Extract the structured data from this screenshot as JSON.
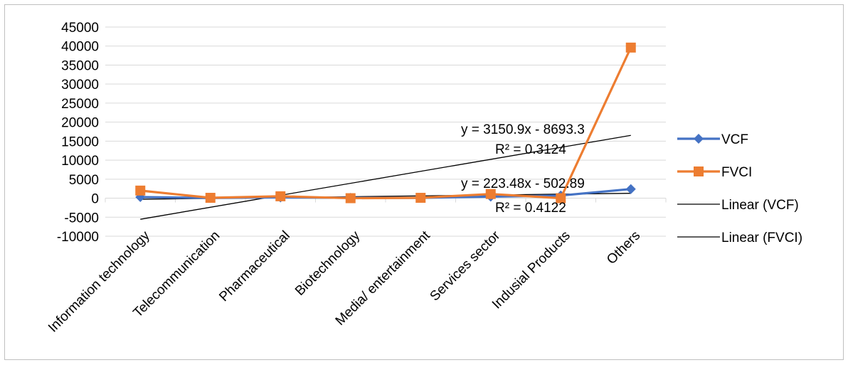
{
  "chart_data": {
    "type": "line",
    "title": "",
    "xlabel": "",
    "ylabel": "",
    "categories": [
      "Information technology",
      "Telecommunication",
      "Pharmaceutical",
      "Biotechnology",
      "Media/ entertainment",
      "Services sector",
      "Indusial Products",
      "Others"
    ],
    "ylim": [
      -10000,
      45000
    ],
    "yticks": [
      45000,
      40000,
      35000,
      30000,
      25000,
      20000,
      15000,
      10000,
      5000,
      0,
      -5000,
      -10000
    ],
    "grid": true,
    "legend_position": "right",
    "series": [
      {
        "name": "VCF",
        "color": "#4472c4",
        "marker": "diamond",
        "values": [
          300,
          50,
          200,
          100,
          100,
          400,
          700,
          2400
        ]
      },
      {
        "name": "FVCI",
        "color": "#ed7d31",
        "marker": "square",
        "values": [
          2000,
          100,
          500,
          0,
          100,
          1100,
          0,
          39600
        ]
      }
    ],
    "trendlines": [
      {
        "name": "Linear (VCF)",
        "slope": 223.48,
        "intercept": -502.89,
        "equation": "y = 223.48x - 502.89",
        "r2": "R² = 0.4122",
        "color": "#000000"
      },
      {
        "name": "Linear (FVCI)",
        "slope": 3150.9,
        "intercept": -8693.3,
        "equation": "y = 3150.9x - 8693.3",
        "r2": "R² = 0.3124",
        "color": "#000000"
      }
    ]
  }
}
